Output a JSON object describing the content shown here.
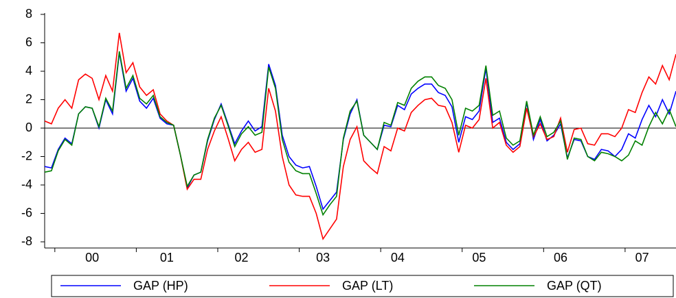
{
  "chart_data": {
    "type": "line",
    "categories": [
      null,
      null,
      null,
      null,
      null,
      null,
      null,
      "00",
      null,
      null,
      null,
      null,
      null,
      null,
      null,
      null,
      null,
      null,
      "01",
      null,
      null,
      null,
      null,
      null,
      null,
      null,
      null,
      null,
      null,
      "02",
      null,
      null,
      null,
      null,
      null,
      null,
      null,
      null,
      null,
      null,
      null,
      "03",
      null,
      null,
      null,
      null,
      null,
      null,
      null,
      null,
      null,
      null,
      "04",
      null,
      null,
      null,
      null,
      null,
      null,
      null,
      null,
      null,
      null,
      null,
      "05",
      null,
      null,
      null,
      null,
      null,
      null,
      null,
      null,
      null,
      null,
      null,
      "06",
      null,
      null,
      null,
      null,
      null,
      null,
      null,
      null,
      null,
      null,
      null,
      "07",
      null,
      null,
      null,
      null,
      null
    ],
    "ylim": [
      -8,
      8
    ],
    "yticks": [
      -8,
      -6,
      -4,
      -2,
      0,
      2,
      4,
      6,
      8
    ],
    "series": [
      {
        "name": "GAP (HP)",
        "color": "#0000ff",
        "values": [
          -2.7,
          -2.8,
          -1.5,
          -0.7,
          -1.1,
          1.0,
          1.5,
          1.4,
          0.0,
          2.0,
          1.0,
          5.3,
          2.6,
          3.5,
          1.9,
          1.4,
          2.1,
          0.7,
          0.3,
          0.2,
          -1.9,
          -4.2,
          -3.3,
          -3.1,
          -0.9,
          0.6,
          1.7,
          0.3,
          -1.1,
          -0.2,
          0.5,
          -0.2,
          0.1,
          4.5,
          3.0,
          -0.5,
          -2.0,
          -2.6,
          -2.8,
          -2.7,
          -4.1,
          -5.7,
          -5.1,
          -4.5,
          -0.8,
          1.0,
          2.0,
          -0.5,
          -1.0,
          -1.5,
          0.2,
          0.1,
          1.6,
          1.3,
          2.4,
          2.8,
          3.1,
          3.1,
          2.5,
          2.3,
          1.5,
          -1.0,
          0.8,
          0.6,
          1.2,
          4.2,
          0.4,
          0.7,
          -1.0,
          -1.5,
          -1.1,
          1.8,
          -0.8,
          0.6,
          -0.9,
          -0.5,
          0.3,
          -2.1,
          -0.8,
          -0.9,
          -2.0,
          -2.2,
          -1.5,
          -1.6,
          -2.0,
          -1.5,
          -0.4,
          -0.7,
          0.6,
          1.6,
          0.8,
          2.0,
          1.0,
          2.6
        ]
      },
      {
        "name": "GAP (LT)",
        "color": "#ff0000",
        "values": [
          0.5,
          0.3,
          1.4,
          2.0,
          1.4,
          3.4,
          3.8,
          3.5,
          2.0,
          3.7,
          2.6,
          6.7,
          3.9,
          4.6,
          2.9,
          2.3,
          2.7,
          1.0,
          0.5,
          0.2,
          -1.9,
          -4.3,
          -3.6,
          -3.6,
          -1.5,
          -0.2,
          0.8,
          -0.7,
          -2.3,
          -1.5,
          -1.0,
          -1.7,
          -1.5,
          2.8,
          1.2,
          -2.0,
          -4.0,
          -4.7,
          -4.8,
          -4.8,
          -6.0,
          -7.8,
          -7.1,
          -6.4,
          -2.7,
          -0.8,
          0.1,
          -2.3,
          -2.8,
          -3.2,
          -1.3,
          -1.6,
          0.0,
          -0.2,
          1.1,
          1.6,
          2.0,
          2.1,
          1.6,
          1.5,
          0.4,
          -1.7,
          0.2,
          0.0,
          0.6,
          3.5,
          0.0,
          0.4,
          -1.2,
          -1.7,
          -1.3,
          1.4,
          -0.6,
          0.3,
          -0.8,
          -0.6,
          0.7,
          -1.7,
          -0.1,
          0.0,
          -1.1,
          -1.2,
          -0.4,
          -0.4,
          -0.6,
          0.0,
          1.3,
          1.1,
          2.5,
          3.6,
          3.1,
          4.4,
          3.4,
          5.2
        ]
      },
      {
        "name": "GAP (QT)",
        "color": "#008000",
        "values": [
          -3.1,
          -3.0,
          -1.6,
          -0.8,
          -1.2,
          1.0,
          1.5,
          1.4,
          0.1,
          2.1,
          1.2,
          5.4,
          2.8,
          3.7,
          2.1,
          1.7,
          2.3,
          0.8,
          0.4,
          0.2,
          -1.9,
          -4.1,
          -3.3,
          -3.1,
          -0.8,
          0.7,
          1.6,
          0.2,
          -1.3,
          -0.4,
          0.1,
          -0.5,
          -0.3,
          4.3,
          2.8,
          -0.8,
          -2.4,
          -3.0,
          -3.2,
          -3.2,
          -4.6,
          -6.1,
          -5.4,
          -4.8,
          -0.7,
          1.2,
          1.9,
          -0.5,
          -1.0,
          -1.5,
          0.4,
          0.2,
          1.8,
          1.6,
          2.8,
          3.3,
          3.6,
          3.6,
          3.0,
          2.8,
          2.0,
          -0.5,
          1.4,
          1.2,
          1.6,
          4.4,
          0.9,
          1.2,
          -0.7,
          -1.2,
          -0.9,
          1.9,
          -0.5,
          0.8,
          -0.6,
          -0.3,
          0.5,
          -2.2,
          -0.7,
          -0.8,
          -2.0,
          -2.3,
          -1.7,
          -1.8,
          -2.0,
          -2.3,
          -1.9,
          -0.9,
          -1.2,
          0.1,
          1.1,
          0.3,
          1.3,
          0.1
        ]
      }
    ]
  }
}
